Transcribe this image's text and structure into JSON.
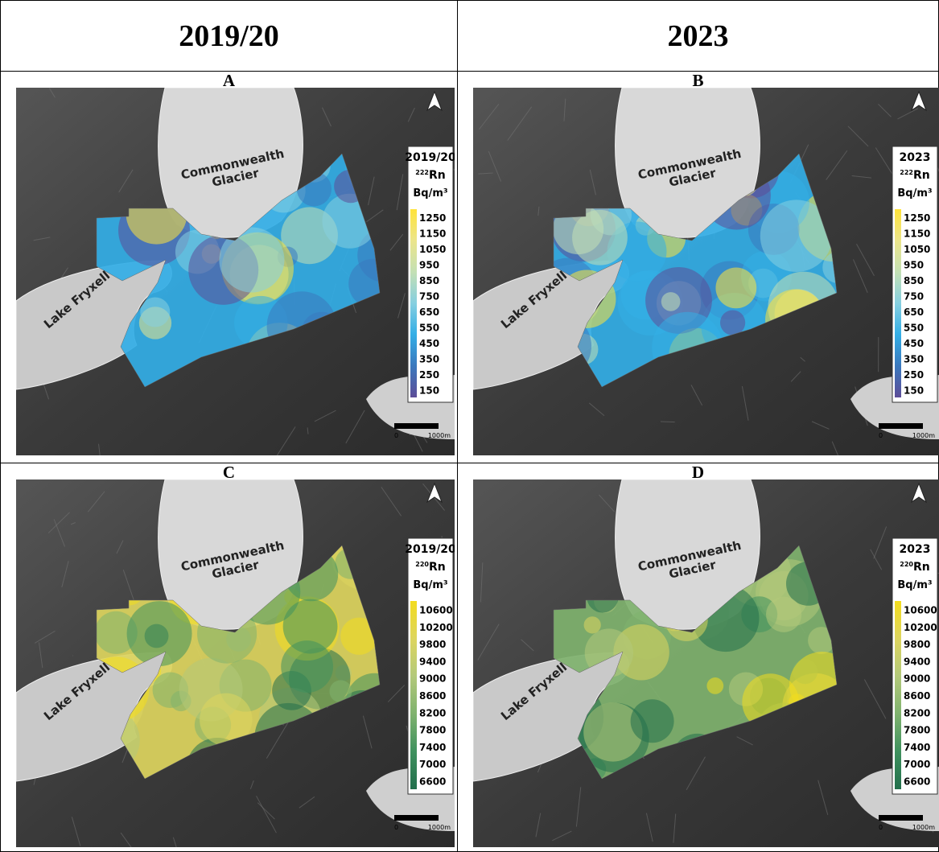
{
  "columns": [
    "2019/20",
    "2023"
  ],
  "panels": [
    {
      "label": "A",
      "glacier_label": [
        "Commonwealth",
        "Glacier"
      ],
      "lake_label": "Lake Fryxell",
      "legend": {
        "title": "2019/20",
        "mass": "222",
        "element": "Rn",
        "unit": "Bq/m³",
        "ticks": [
          1250,
          1150,
          1050,
          950,
          850,
          750,
          650,
          550,
          450,
          350,
          250,
          150
        ],
        "colors": [
          "#ffe33a",
          "#ece58a",
          "#c4e0b4",
          "#86cfe0",
          "#33aee6",
          "#3a78bd",
          "#5d4d98"
        ]
      },
      "scale": {
        "zero": "0",
        "length": "1000m"
      }
    },
    {
      "label": "B",
      "glacier_label": [
        "Commonwealth",
        "Glacier"
      ],
      "lake_label": "Lake Fryxell",
      "legend": {
        "title": "2023",
        "mass": "222",
        "element": "Rn",
        "unit": "Bq/m³",
        "ticks": [
          1250,
          1150,
          1050,
          950,
          850,
          750,
          650,
          550,
          450,
          350,
          250,
          150
        ],
        "colors": [
          "#ffe33a",
          "#ece58a",
          "#c4e0b4",
          "#86cfe0",
          "#33aee6",
          "#3a78bd",
          "#5d4d98"
        ]
      },
      "scale": {
        "zero": "0",
        "length": "1000m"
      }
    },
    {
      "label": "C",
      "glacier_label": [
        "Commonwealth",
        "Glacier"
      ],
      "lake_label": "Lake Fryxell",
      "legend": {
        "title": "2019/20",
        "mass": "220",
        "element": "Rn",
        "unit": "Bq/m³",
        "ticks": [
          10600,
          10200,
          9800,
          9400,
          9000,
          8600,
          8200,
          7800,
          7400,
          7000,
          6600
        ],
        "colors": [
          "#f3dc1e",
          "#ddd55e",
          "#b3c97a",
          "#7fb26e",
          "#3f915e",
          "#226f4c"
        ]
      },
      "scale": {
        "zero": "0",
        "length": "1000m"
      }
    },
    {
      "label": "D",
      "glacier_label": [
        "Commonwealth",
        "Glacier"
      ],
      "lake_label": "Lake Fryxell",
      "legend": {
        "title": "2023",
        "mass": "220",
        "element": "Rn",
        "unit": "Bq/m³",
        "ticks": [
          10600,
          10200,
          9800,
          9400,
          9000,
          8600,
          8200,
          7800,
          7400,
          7000,
          6600
        ],
        "colors": [
          "#f3dc1e",
          "#ddd55e",
          "#b3c97a",
          "#7fb26e",
          "#3f915e",
          "#226f4c"
        ]
      },
      "scale": {
        "zero": "0",
        "length": "1000m"
      }
    }
  ]
}
